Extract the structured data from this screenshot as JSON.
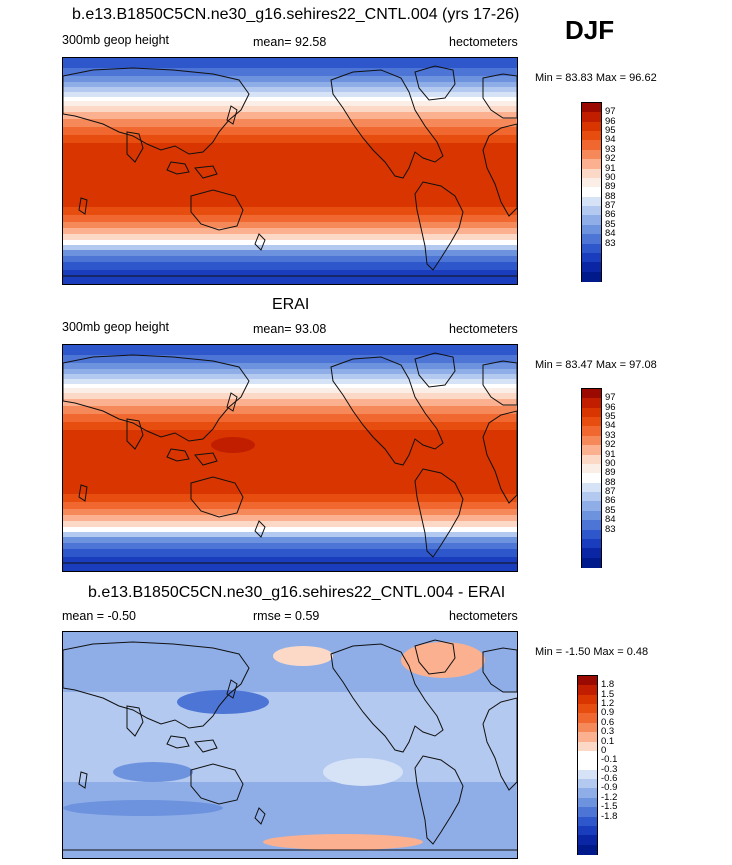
{
  "season": "DJF",
  "panels": [
    {
      "id": "model",
      "title": "b.e13.B1850C5CN.ne30_g16.sehires22_CNTL.004 (yrs 17-26)",
      "left_label": "300mb geop height",
      "center_label": "mean=  92.58",
      "right_label": "hectometers",
      "minmax": "Min =  83.83 Max =  96.62",
      "field": "abs",
      "colorbar": {
        "labels": [
          "97",
          "96",
          "95",
          "94",
          "93",
          "92",
          "91",
          "90",
          "89",
          "88",
          "87",
          "86",
          "85",
          "84",
          "83"
        ],
        "colors": [
          "#9b0a00",
          "#c11e00",
          "#d93500",
          "#e84d10",
          "#f0682f",
          "#f6895a",
          "#fbb08f",
          "#fcd9c6",
          "#fbeee6",
          "#ffffff",
          "#d6e2f6",
          "#b3c9f0",
          "#8faee8",
          "#6d92de",
          "#4d75d6",
          "#2f57cc",
          "#1a3dbd",
          "#0b26a5",
          "#001a8c"
        ]
      }
    },
    {
      "id": "obs",
      "title": "ERAI",
      "left_label": "300mb geop height",
      "center_label": "mean=  93.08",
      "right_label": "hectometers",
      "minmax": "Min =  83.47 Max =  97.08",
      "field": "abs",
      "colorbar": {
        "labels": [
          "97",
          "96",
          "95",
          "94",
          "93",
          "92",
          "91",
          "90",
          "89",
          "88",
          "87",
          "86",
          "85",
          "84",
          "83"
        ],
        "colors": [
          "#9b0a00",
          "#c11e00",
          "#d93500",
          "#e84d10",
          "#f0682f",
          "#f6895a",
          "#fbb08f",
          "#fcd9c6",
          "#fbeee6",
          "#ffffff",
          "#d6e2f6",
          "#b3c9f0",
          "#8faee8",
          "#6d92de",
          "#4d75d6",
          "#2f57cc",
          "#1a3dbd",
          "#0b26a5",
          "#001a8c"
        ]
      }
    },
    {
      "id": "diff",
      "title": "b.e13.B1850C5CN.ne30_g16.sehires22_CNTL.004 - ERAI",
      "left_label": "mean =  -0.50",
      "center_label": "rmse =   0.59",
      "right_label": "hectometers",
      "minmax": "Min =  -1.50 Max =   0.48",
      "field": "diff",
      "colorbar": {
        "labels": [
          "1.8",
          "1.5",
          "1.2",
          "0.9",
          "0.6",
          "0.3",
          "0.1",
          "0",
          "-0.1",
          "-0.3",
          "-0.6",
          "-0.9",
          "-1.2",
          "-1.5",
          "-1.8"
        ],
        "colors": [
          "#9b0a00",
          "#c11e00",
          "#d93500",
          "#e84d10",
          "#f0682f",
          "#f6895a",
          "#fbb08f",
          "#fcd9c6",
          "#ffffff",
          "#ffffff",
          "#d6e2f6",
          "#b3c9f0",
          "#8faee8",
          "#6d92de",
          "#4d75d6",
          "#2f57cc",
          "#1a3dbd",
          "#0b26a5",
          "#001a8c"
        ]
      }
    }
  ]
}
